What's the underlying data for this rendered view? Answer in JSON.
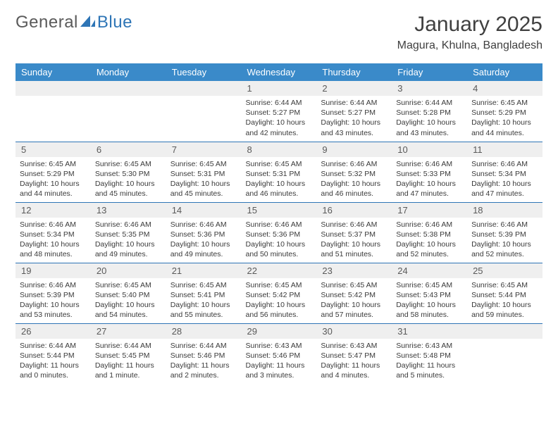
{
  "logo": {
    "text_general": "General",
    "text_blue": "Blue"
  },
  "title": "January 2025",
  "location": "Magura, Khulna, Bangladesh",
  "colors": {
    "header_bg": "#3a8ac9",
    "row_divider": "#2e75b6",
    "daynum_bg": "#efefef",
    "logo_blue": "#2e75b6",
    "text": "#404040"
  },
  "weekdays": [
    "Sunday",
    "Monday",
    "Tuesday",
    "Wednesday",
    "Thursday",
    "Friday",
    "Saturday"
  ],
  "first_weekday_index": 3,
  "days_in_month": 31,
  "days": {
    "1": {
      "sunrise": "6:44 AM",
      "sunset": "5:27 PM",
      "daylight": "10 hours and 42 minutes."
    },
    "2": {
      "sunrise": "6:44 AM",
      "sunset": "5:27 PM",
      "daylight": "10 hours and 43 minutes."
    },
    "3": {
      "sunrise": "6:44 AM",
      "sunset": "5:28 PM",
      "daylight": "10 hours and 43 minutes."
    },
    "4": {
      "sunrise": "6:45 AM",
      "sunset": "5:29 PM",
      "daylight": "10 hours and 44 minutes."
    },
    "5": {
      "sunrise": "6:45 AM",
      "sunset": "5:29 PM",
      "daylight": "10 hours and 44 minutes."
    },
    "6": {
      "sunrise": "6:45 AM",
      "sunset": "5:30 PM",
      "daylight": "10 hours and 45 minutes."
    },
    "7": {
      "sunrise": "6:45 AM",
      "sunset": "5:31 PM",
      "daylight": "10 hours and 45 minutes."
    },
    "8": {
      "sunrise": "6:45 AM",
      "sunset": "5:31 PM",
      "daylight": "10 hours and 46 minutes."
    },
    "9": {
      "sunrise": "6:46 AM",
      "sunset": "5:32 PM",
      "daylight": "10 hours and 46 minutes."
    },
    "10": {
      "sunrise": "6:46 AM",
      "sunset": "5:33 PM",
      "daylight": "10 hours and 47 minutes."
    },
    "11": {
      "sunrise": "6:46 AM",
      "sunset": "5:34 PM",
      "daylight": "10 hours and 47 minutes."
    },
    "12": {
      "sunrise": "6:46 AM",
      "sunset": "5:34 PM",
      "daylight": "10 hours and 48 minutes."
    },
    "13": {
      "sunrise": "6:46 AM",
      "sunset": "5:35 PM",
      "daylight": "10 hours and 49 minutes."
    },
    "14": {
      "sunrise": "6:46 AM",
      "sunset": "5:36 PM",
      "daylight": "10 hours and 49 minutes."
    },
    "15": {
      "sunrise": "6:46 AM",
      "sunset": "5:36 PM",
      "daylight": "10 hours and 50 minutes."
    },
    "16": {
      "sunrise": "6:46 AM",
      "sunset": "5:37 PM",
      "daylight": "10 hours and 51 minutes."
    },
    "17": {
      "sunrise": "6:46 AM",
      "sunset": "5:38 PM",
      "daylight": "10 hours and 52 minutes."
    },
    "18": {
      "sunrise": "6:46 AM",
      "sunset": "5:39 PM",
      "daylight": "10 hours and 52 minutes."
    },
    "19": {
      "sunrise": "6:46 AM",
      "sunset": "5:39 PM",
      "daylight": "10 hours and 53 minutes."
    },
    "20": {
      "sunrise": "6:45 AM",
      "sunset": "5:40 PM",
      "daylight": "10 hours and 54 minutes."
    },
    "21": {
      "sunrise": "6:45 AM",
      "sunset": "5:41 PM",
      "daylight": "10 hours and 55 minutes."
    },
    "22": {
      "sunrise": "6:45 AM",
      "sunset": "5:42 PM",
      "daylight": "10 hours and 56 minutes."
    },
    "23": {
      "sunrise": "6:45 AM",
      "sunset": "5:42 PM",
      "daylight": "10 hours and 57 minutes."
    },
    "24": {
      "sunrise": "6:45 AM",
      "sunset": "5:43 PM",
      "daylight": "10 hours and 58 minutes."
    },
    "25": {
      "sunrise": "6:45 AM",
      "sunset": "5:44 PM",
      "daylight": "10 hours and 59 minutes."
    },
    "26": {
      "sunrise": "6:44 AM",
      "sunset": "5:44 PM",
      "daylight": "11 hours and 0 minutes."
    },
    "27": {
      "sunrise": "6:44 AM",
      "sunset": "5:45 PM",
      "daylight": "11 hours and 1 minute."
    },
    "28": {
      "sunrise": "6:44 AM",
      "sunset": "5:46 PM",
      "daylight": "11 hours and 2 minutes."
    },
    "29": {
      "sunrise": "6:43 AM",
      "sunset": "5:46 PM",
      "daylight": "11 hours and 3 minutes."
    },
    "30": {
      "sunrise": "6:43 AM",
      "sunset": "5:47 PM",
      "daylight": "11 hours and 4 minutes."
    },
    "31": {
      "sunrise": "6:43 AM",
      "sunset": "5:48 PM",
      "daylight": "11 hours and 5 minutes."
    }
  },
  "labels": {
    "sunrise": "Sunrise:",
    "sunset": "Sunset:",
    "daylight": "Daylight:"
  }
}
